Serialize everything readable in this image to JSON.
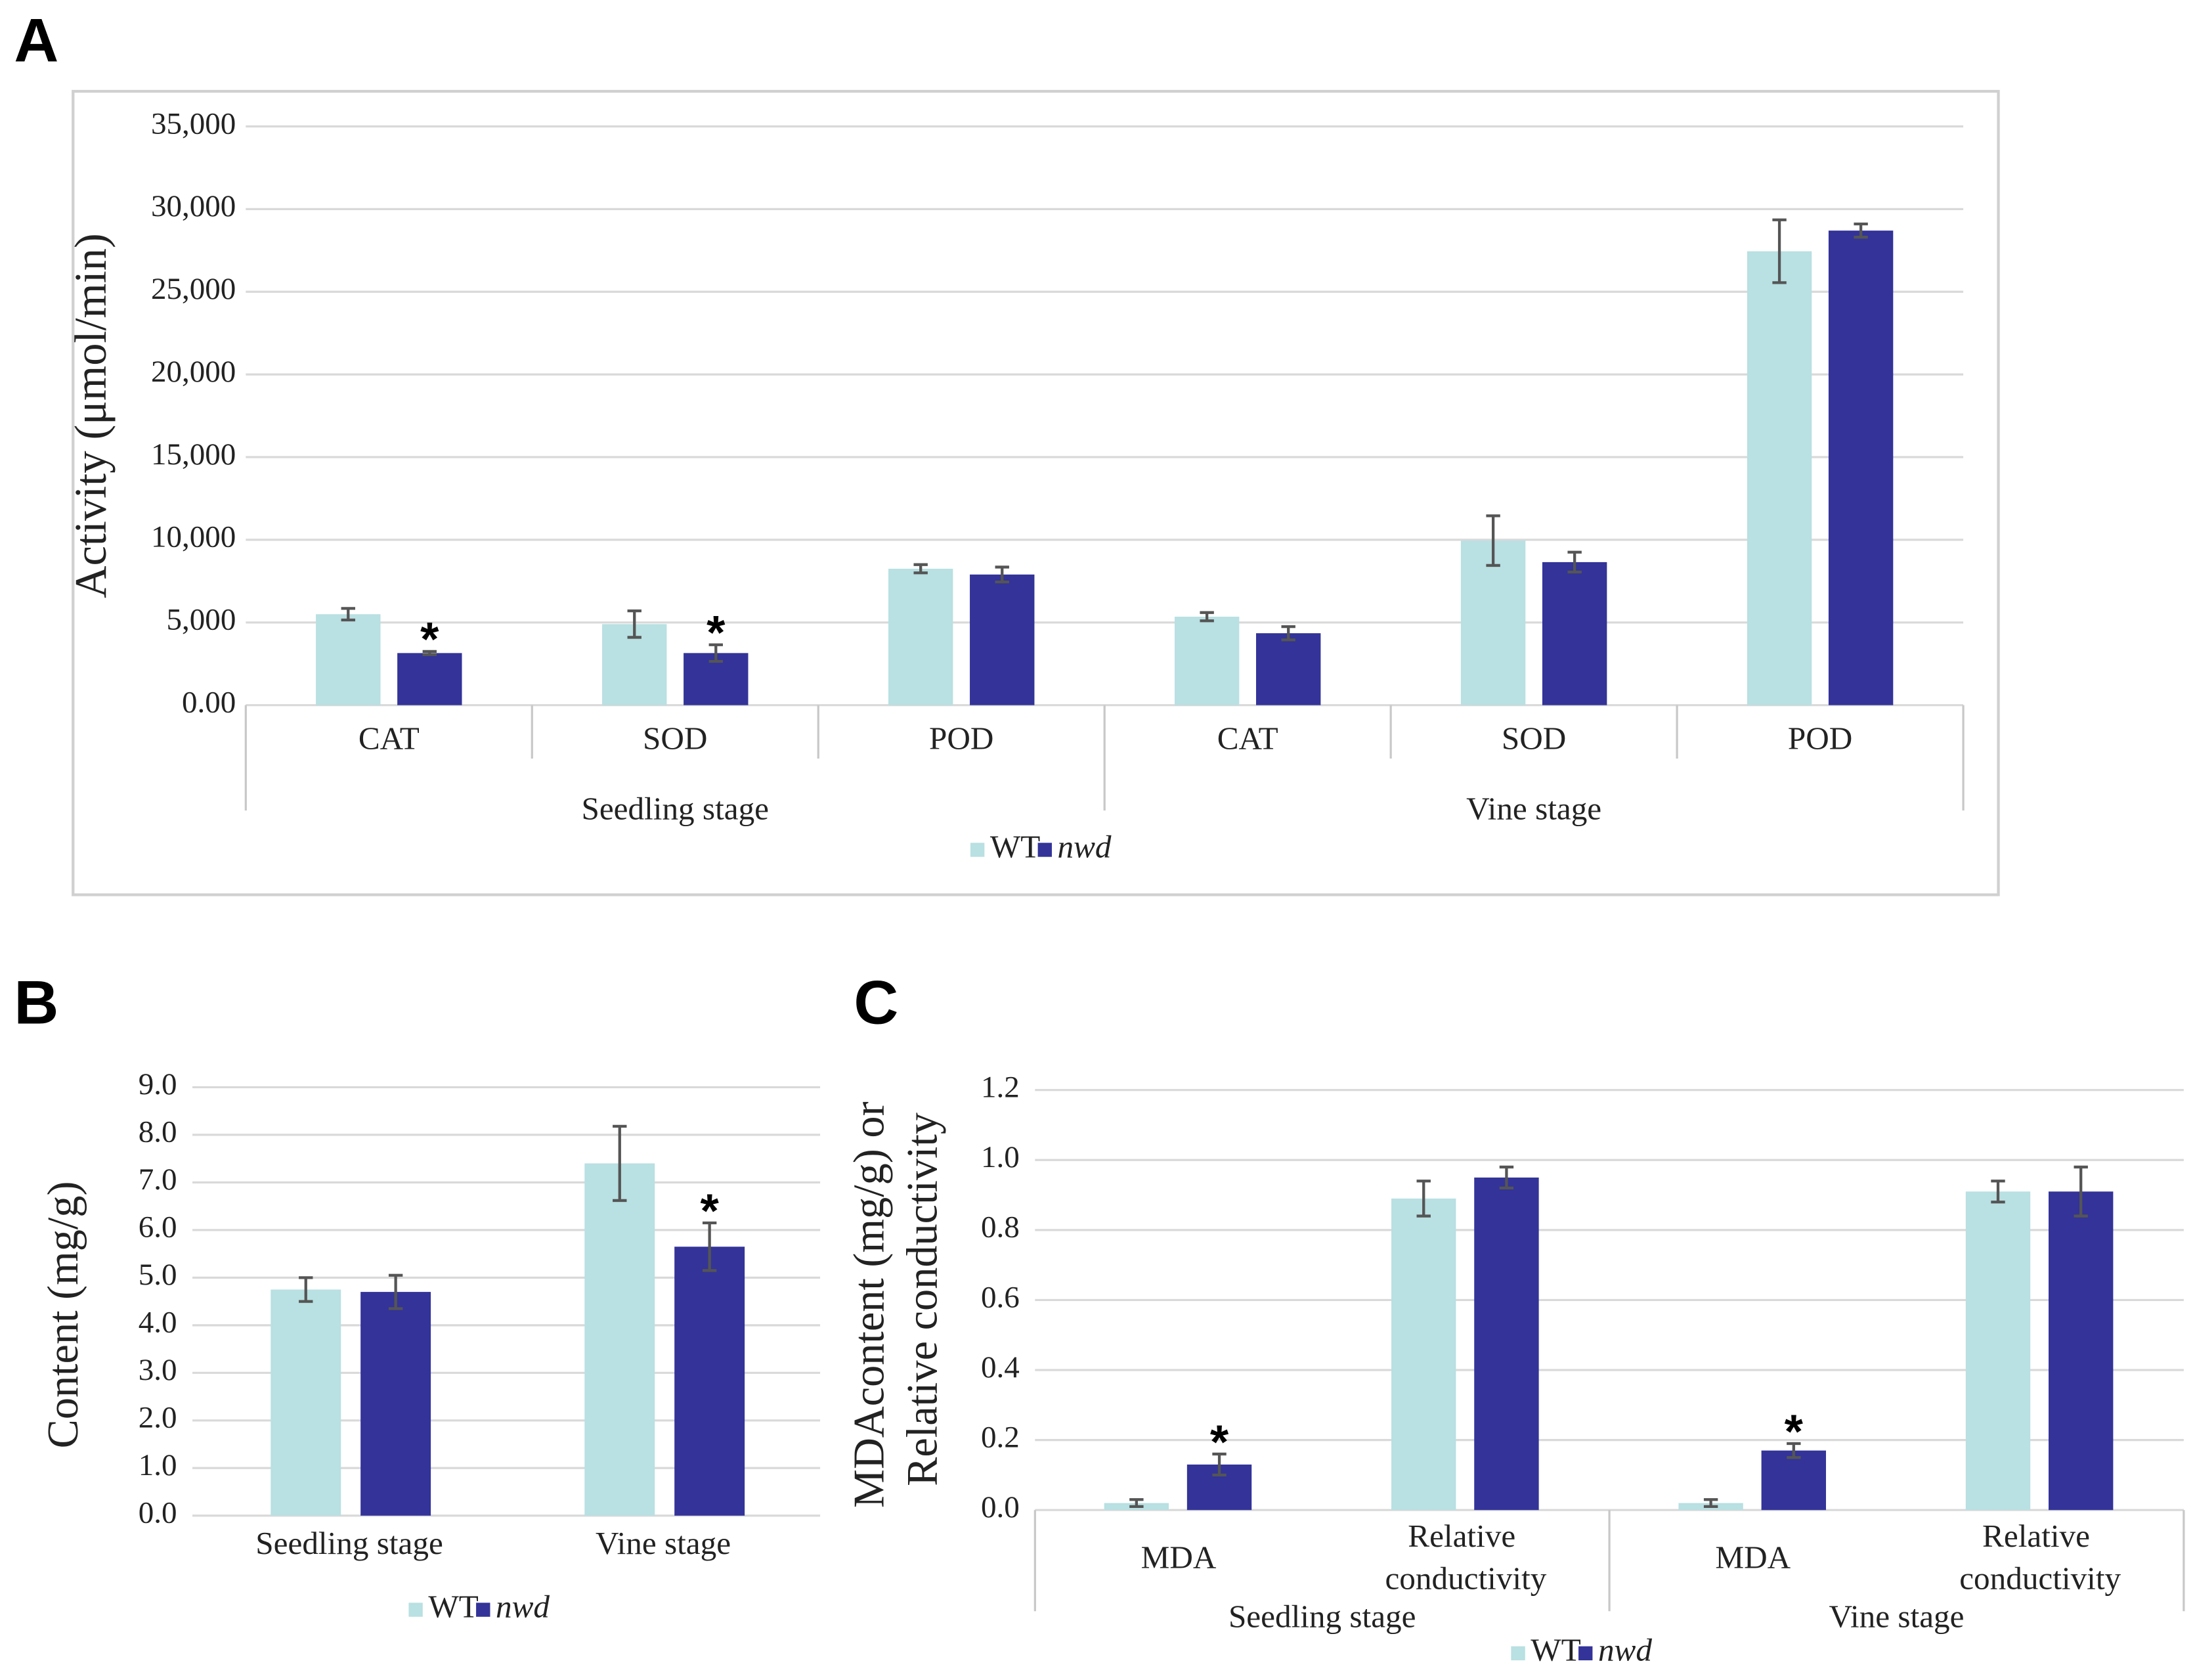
{
  "chart_data": [
    {
      "type": "bar",
      "panel": "A",
      "ylabel": "Activity (μmol/min)",
      "groups": [
        "Seedling stage",
        "Vine stage"
      ],
      "categories": [
        [
          "CAT",
          "SOD",
          "POD"
        ],
        [
          "CAT",
          "SOD",
          "POD"
        ]
      ],
      "series": [
        {
          "name": "WT",
          "color": "#b9e0e2",
          "font_style": "normal",
          "values": [
            [
              5500,
              4900,
              8250
            ],
            [
              5350,
              9950,
              27450
            ]
          ],
          "errors": [
            [
              350,
              800,
              250
            ],
            [
              250,
              1500,
              1900
            ]
          ],
          "significance": [
            [
              null,
              null,
              null
            ],
            [
              null,
              null,
              null
            ]
          ]
        },
        {
          "name": "nwd",
          "color": "#333399",
          "font_style": "italic",
          "values": [
            [
              3150,
              3150,
              7900
            ],
            [
              4350,
              8650,
              28700
            ]
          ],
          "errors": [
            [
              100,
              500,
              450
            ],
            [
              400,
              600,
              400
            ]
          ],
          "significance": [
            [
              "*",
              "*",
              null
            ],
            [
              null,
              null,
              null
            ]
          ]
        }
      ],
      "ylim": [
        0,
        35000
      ],
      "yticks": [
        {
          "value": 0,
          "label": "0.00"
        },
        {
          "value": 5000,
          "label": "5,000"
        },
        {
          "value": 10000,
          "label": "10,000"
        },
        {
          "value": 15000,
          "label": "15,000"
        },
        {
          "value": 20000,
          "label": "20,000"
        },
        {
          "value": 25000,
          "label": "25,000"
        },
        {
          "value": 30000,
          "label": "30,000"
        },
        {
          "value": 35000,
          "label": "35,000"
        }
      ],
      "grid": true,
      "legend": "bottom",
      "frame": true
    },
    {
      "type": "bar",
      "panel": "B",
      "ylabel": "Content (mg/g)",
      "categories": [
        "Seedling stage",
        "Vine stage"
      ],
      "series": [
        {
          "name": "WT",
          "color": "#b9e0e2",
          "font_style": "normal",
          "values": [
            4.75,
            7.4
          ],
          "errors": [
            0.25,
            0.78
          ],
          "significance": [
            null,
            null
          ]
        },
        {
          "name": "nwd",
          "color": "#333399",
          "font_style": "italic",
          "values": [
            4.7,
            5.65
          ],
          "errors": [
            0.35,
            0.5
          ],
          "significance": [
            null,
            "*"
          ]
        }
      ],
      "ylim": [
        0,
        9
      ],
      "yticks": [
        {
          "value": 0,
          "label": "0.0"
        },
        {
          "value": 1,
          "label": "1.0"
        },
        {
          "value": 2,
          "label": "2.0"
        },
        {
          "value": 3,
          "label": "3.0"
        },
        {
          "value": 4,
          "label": "4.0"
        },
        {
          "value": 5,
          "label": "5.0"
        },
        {
          "value": 6,
          "label": "6.0"
        },
        {
          "value": 7,
          "label": "7.0"
        },
        {
          "value": 8,
          "label": "8.0"
        },
        {
          "value": 9,
          "label": "9.0"
        }
      ],
      "grid": true,
      "legend": "bottom",
      "frame": false
    },
    {
      "type": "bar",
      "panel": "C",
      "ylabel": "MDAcontent (mg/g) or Relative conductivity",
      "groups": [
        "Seedling stage",
        "Vine stage"
      ],
      "categories": [
        [
          "MDA",
          "Relative conductivity"
        ],
        [
          "MDA",
          "Relative conductivity"
        ]
      ],
      "series": [
        {
          "name": "WT",
          "color": "#b9e0e2",
          "font_style": "normal",
          "values": [
            [
              0.02,
              0.89
            ],
            [
              0.02,
              0.91
            ]
          ],
          "errors": [
            [
              0.01,
              0.05
            ],
            [
              0.01,
              0.03
            ]
          ],
          "significance": [
            [
              null,
              null
            ],
            [
              null,
              null
            ]
          ]
        },
        {
          "name": "nwd",
          "color": "#333399",
          "font_style": "italic",
          "values": [
            [
              0.13,
              0.95
            ],
            [
              0.17,
              0.91
            ]
          ],
          "errors": [
            [
              0.03,
              0.03
            ],
            [
              0.02,
              0.07
            ]
          ],
          "significance": [
            [
              "*",
              null
            ],
            [
              "*",
              null
            ]
          ]
        }
      ],
      "ylim": [
        0,
        1.2
      ],
      "yticks": [
        {
          "value": 0,
          "label": "0.0"
        },
        {
          "value": 0.2,
          "label": "0.2"
        },
        {
          "value": 0.4,
          "label": "0.4"
        },
        {
          "value": 0.6,
          "label": "0.6"
        },
        {
          "value": 0.8,
          "label": "0.8"
        },
        {
          "value": 1,
          "label": "1.0"
        },
        {
          "value": 1.2,
          "label": "1.2"
        }
      ],
      "grid": true,
      "legend": "bottom",
      "frame": false
    }
  ]
}
